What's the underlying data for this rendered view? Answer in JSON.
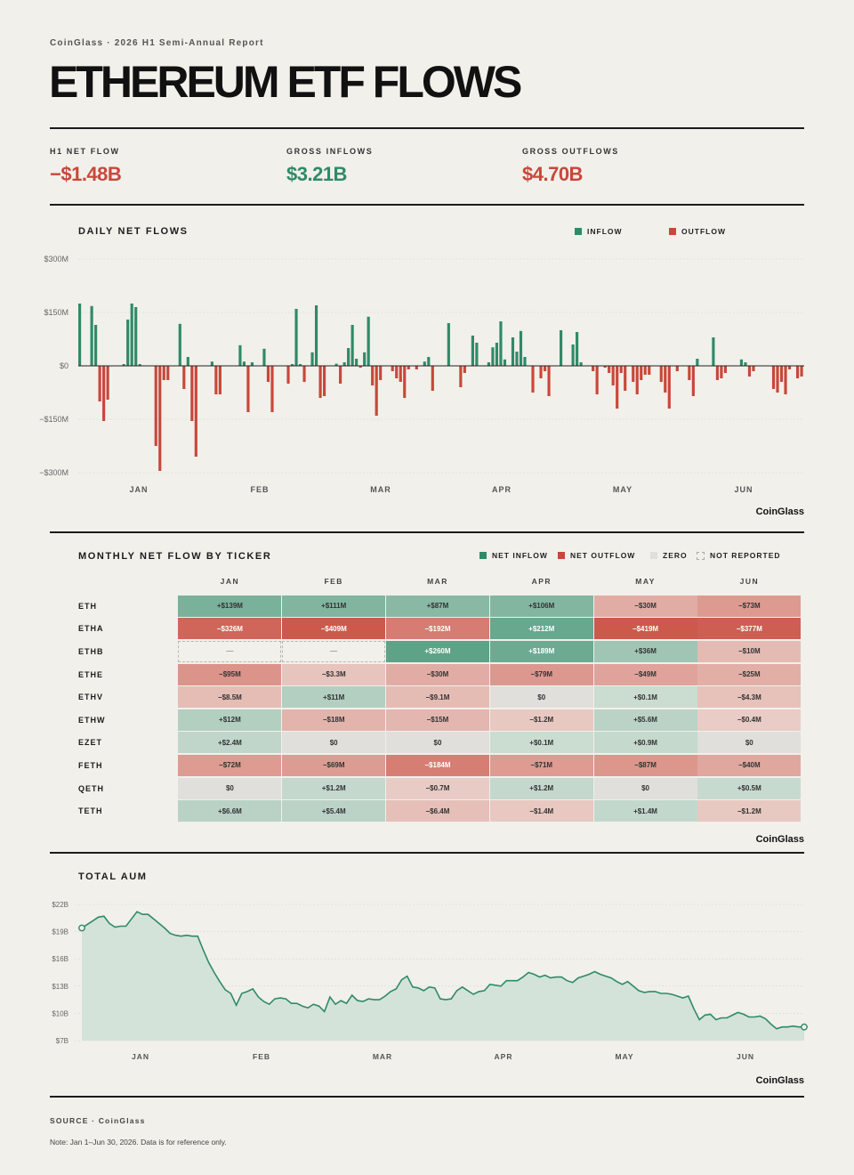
{
  "header": {
    "eyebrow": "CoinGlass · 2026 H1 Semi-Annual Report",
    "title": "ETHEREUM ETF FLOWS"
  },
  "kpis": [
    {
      "label": "H1 NET FLOW",
      "value": "−$1.48B",
      "color": "#c9473a"
    },
    {
      "label": "GROSS INFLOWS",
      "value": "$3.21B",
      "color": "#2f8a68"
    },
    {
      "label": "GROSS OUTFLOWS",
      "value": "$4.70B",
      "color": "#c9473a"
    }
  ],
  "colors": {
    "inflow": "#2f8a68",
    "outflow": "#c9473a",
    "zero": "#e0dfdb",
    "area": "#d3e3d9"
  },
  "brand": "CoinGlass",
  "chart_data": [
    {
      "type": "bar",
      "title": "DAILY NET FLOWS",
      "legend": [
        "INFLOW",
        "OUTFLOW"
      ],
      "legend_position": "top-right",
      "ylim": [
        -300,
        300
      ],
      "y_ticks": [
        300,
        150,
        0,
        -150,
        -300
      ],
      "y_tick_labels": [
        "$300M",
        "$150M",
        "$0",
        "−$150M",
        "−$300M"
      ],
      "x_ticks": [
        "JAN",
        "FEB",
        "MAR",
        "APR",
        "MAY",
        "JUN"
      ],
      "grid": true,
      "unit": "$M",
      "values": [
        175,
        0,
        0,
        168,
        115,
        -100,
        -155,
        -95,
        0,
        0,
        0,
        5,
        130,
        175,
        165,
        5,
        0,
        0,
        0,
        -225,
        -295,
        -40,
        -40,
        0,
        0,
        118,
        -65,
        25,
        -155,
        -255,
        0,
        0,
        0,
        12,
        -80,
        -80,
        0,
        0,
        0,
        0,
        58,
        12,
        -130,
        10,
        0,
        0,
        48,
        -45,
        -130,
        0,
        0,
        0,
        -50,
        5,
        160,
        5,
        -45,
        0,
        38,
        170,
        -90,
        -85,
        0,
        0,
        6,
        -50,
        10,
        50,
        115,
        20,
        -5,
        38,
        138,
        -55,
        -140,
        -40,
        0,
        0,
        -15,
        -35,
        -45,
        -90,
        -10,
        0,
        -10,
        0,
        12,
        25,
        -70,
        0,
        0,
        0,
        120,
        0,
        0,
        -60,
        -20,
        0,
        85,
        65,
        0,
        0,
        10,
        52,
        65,
        125,
        18,
        0,
        80,
        40,
        98,
        25,
        0,
        -75,
        0,
        -35,
        -15,
        -85,
        0,
        0,
        100,
        0,
        0,
        60,
        95,
        10,
        0,
        0,
        -15,
        -80,
        0,
        -5,
        -20,
        -55,
        -120,
        -20,
        -70,
        0,
        -45,
        -80,
        -40,
        -25,
        -25,
        0,
        0,
        -45,
        -75,
        -120,
        0,
        -15,
        0,
        0,
        -40,
        -85,
        20,
        0,
        0,
        0,
        80,
        -40,
        -35,
        -20,
        0,
        0,
        0,
        18,
        10,
        -30,
        -15,
        0,
        0,
        0,
        0,
        -65,
        -75,
        -45,
        -80,
        -10,
        0,
        -35,
        -30
      ]
    },
    {
      "type": "heatmap",
      "title": "MONTHLY NET FLOW BY TICKER",
      "legend": [
        "NET INFLOW",
        "NET OUTFLOW",
        "ZERO",
        "NOT REPORTED"
      ],
      "legend_position": "top-right",
      "columns": [
        "JAN",
        "FEB",
        "MAR",
        "APR",
        "MAY",
        "JUN"
      ],
      "rows": [
        {
          "ticker": "ETH",
          "cells": [
            "+$139M",
            "+$111M",
            "+$87M",
            "+$106M",
            "−$30M",
            "−$73M"
          ],
          "values": [
            139,
            111,
            87,
            106,
            -30,
            -73
          ]
        },
        {
          "ticker": "ETHA",
          "cells": [
            "−$326M",
            "−$409M",
            "−$192M",
            "+$212M",
            "−$419M",
            "−$377M"
          ],
          "values": [
            -326,
            -409,
            -192,
            212,
            -419,
            -377
          ]
        },
        {
          "ticker": "ETHB",
          "cells": [
            "—",
            "—",
            "+$260M",
            "+$189M",
            "+$36M",
            "−$10M"
          ],
          "values": [
            null,
            null,
            260,
            189,
            36,
            -10
          ]
        },
        {
          "ticker": "ETHE",
          "cells": [
            "−$95M",
            "−$3.3M",
            "−$30M",
            "−$79M",
            "−$49M",
            "−$25M"
          ],
          "values": [
            -95,
            -3.3,
            -30,
            -79,
            -49,
            -25
          ]
        },
        {
          "ticker": "ETHV",
          "cells": [
            "−$8.5M",
            "+$11M",
            "−$9.1M",
            "$0",
            "+$0.1M",
            "−$4.3M"
          ],
          "values": [
            -8.5,
            11,
            -9.1,
            0,
            0.1,
            -4.3
          ]
        },
        {
          "ticker": "ETHW",
          "cells": [
            "+$12M",
            "−$18M",
            "−$15M",
            "−$1.2M",
            "+$5.6M",
            "−$0.4M"
          ],
          "values": [
            12,
            -18,
            -15,
            -1.2,
            5.6,
            -0.4
          ]
        },
        {
          "ticker": "EZET",
          "cells": [
            "+$2.4M",
            "$0",
            "$0",
            "+$0.1M",
            "+$0.9M",
            "$0"
          ],
          "values": [
            2.4,
            0,
            0,
            0.1,
            0.9,
            0
          ]
        },
        {
          "ticker": "FETH",
          "cells": [
            "−$72M",
            "−$69M",
            "−$184M",
            "−$71M",
            "−$87M",
            "−$40M"
          ],
          "values": [
            -72,
            -69,
            -184,
            -71,
            -87,
            -40
          ]
        },
        {
          "ticker": "QETH",
          "cells": [
            "$0",
            "+$1.2M",
            "−$0.7M",
            "+$1.2M",
            "$0",
            "+$0.5M"
          ],
          "values": [
            0,
            1.2,
            -0.7,
            1.2,
            0,
            0.5
          ]
        },
        {
          "ticker": "TETH",
          "cells": [
            "+$6.6M",
            "+$5.4M",
            "−$6.4M",
            "−$1.4M",
            "+$1.4M",
            "−$1.2M"
          ],
          "values": [
            6.6,
            5.4,
            -6.4,
            -1.4,
            1.4,
            -1.2
          ]
        }
      ]
    },
    {
      "type": "area",
      "title": "TOTAL AUM",
      "unit": "$B",
      "ylim": [
        7,
        22
      ],
      "y_ticks": [
        22,
        19,
        16,
        13,
        10,
        7
      ],
      "y_tick_labels": [
        "$22B",
        "$19B",
        "$16B",
        "$13B",
        "$10B",
        "$7B"
      ],
      "x_ticks": [
        "JAN",
        "FEB",
        "MAR",
        "APR",
        "MAY",
        "JUN"
      ],
      "values": [
        19.4,
        19.8,
        20.2,
        20.6,
        20.7,
        19.9,
        19.5,
        19.6,
        19.6,
        20.4,
        21.2,
        20.9,
        20.9,
        20.4,
        19.9,
        19.4,
        18.8,
        18.6,
        18.5,
        18.6,
        18.5,
        18.5,
        17.0,
        15.6,
        14.5,
        13.5,
        12.6,
        12.2,
        10.9,
        12.2,
        12.4,
        12.7,
        11.8,
        11.3,
        11.0,
        11.6,
        11.7,
        11.6,
        11.1,
        11.1,
        10.8,
        10.6,
        11.0,
        10.8,
        10.2,
        11.8,
        11.0,
        11.4,
        11.1,
        12.0,
        11.4,
        11.3,
        11.6,
        11.5,
        11.5,
        11.9,
        12.4,
        12.7,
        13.7,
        14.1,
        12.9,
        12.8,
        12.5,
        12.9,
        12.8,
        11.6,
        11.5,
        11.6,
        12.5,
        12.9,
        12.5,
        12.1,
        12.4,
        12.5,
        13.2,
        13.1,
        13.0,
        13.6,
        13.6,
        13.6,
        14.0,
        14.5,
        14.3,
        14.0,
        14.2,
        13.9,
        14.0,
        14.0,
        13.6,
        13.4,
        13.9,
        14.1,
        14.3,
        14.6,
        14.3,
        14.1,
        13.9,
        13.5,
        13.2,
        13.5,
        13.0,
        12.5,
        12.3,
        12.4,
        12.4,
        12.2,
        12.2,
        12.1,
        11.9,
        11.7,
        11.9,
        10.5,
        9.3,
        9.8,
        9.9,
        9.3,
        9.5,
        9.5,
        9.8,
        10.1,
        9.9,
        9.6,
        9.6,
        9.7,
        9.4,
        8.8,
        8.3,
        8.5,
        8.5,
        8.6,
        8.5,
        8.5
      ]
    }
  ],
  "footer": {
    "source": "SOURCE · CoinGlass",
    "note": "Note: Jan 1–Jun 30, 2026. Data is for reference only."
  }
}
